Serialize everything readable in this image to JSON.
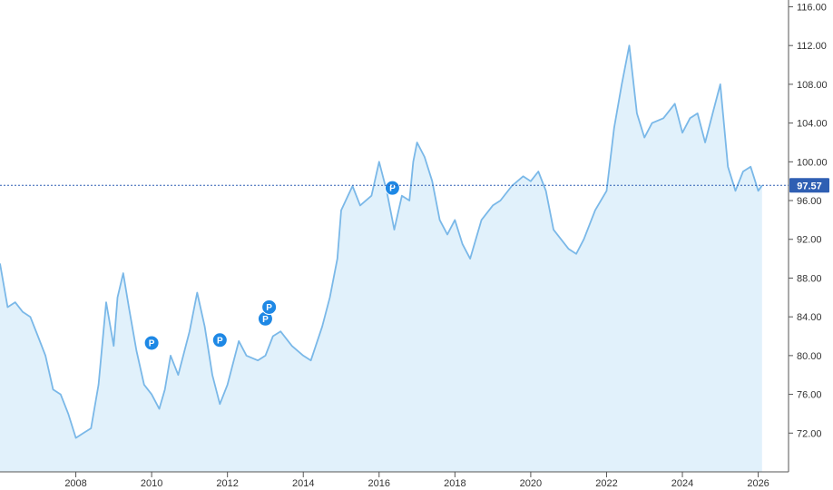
{
  "chart_data": {
    "type": "area",
    "title": "",
    "xlabel": "",
    "ylabel": "",
    "xlim": [
      2006.0,
      2026.8
    ],
    "ylim": [
      68.0,
      116.7
    ],
    "x_ticks": [
      "2008",
      "2010",
      "2012",
      "2014",
      "2016",
      "2018",
      "2020",
      "2022",
      "2024",
      "2026"
    ],
    "y_ticks": [
      "72.00",
      "76.00",
      "80.00",
      "84.00",
      "88.00",
      "92.00",
      "96.00",
      "100.00",
      "104.00",
      "108.00",
      "112.00",
      "116.00"
    ],
    "grid": false,
    "current_value": "97.57",
    "colors": {
      "line": "#7ab8e8",
      "fill": "#e1f1fb",
      "marker": "#1e88e5",
      "current_line": "#2f5fb3",
      "current_tag": "#2f5fb3",
      "axis": "#555555"
    },
    "series": [
      {
        "x": [
          2006.0,
          2006.2,
          2006.4,
          2006.6,
          2006.8,
          2007.0,
          2007.2,
          2007.4,
          2007.6,
          2007.8,
          2008.0,
          2008.2,
          2008.4,
          2008.6,
          2008.8,
          2009.0,
          2009.1,
          2009.25,
          2009.4,
          2009.6,
          2009.8,
          2010.0,
          2010.2,
          2010.35,
          2010.5,
          2010.7,
          2011.0,
          2011.2,
          2011.4,
          2011.6,
          2011.8,
          2012.0,
          2012.3,
          2012.5,
          2012.8,
          2013.0,
          2013.2,
          2013.4,
          2013.7,
          2014.0,
          2014.2,
          2014.5,
          2014.7,
          2014.9,
          2015.0,
          2015.3,
          2015.5,
          2015.8,
          2016.0,
          2016.2,
          2016.4,
          2016.6,
          2016.8,
          2016.9,
          2017.0,
          2017.2,
          2017.4,
          2017.6,
          2017.8,
          2018.0,
          2018.2,
          2018.4,
          2018.7,
          2019.0,
          2019.2,
          2019.5,
          2019.8,
          2020.0,
          2020.2,
          2020.4,
          2020.6,
          2020.8,
          2021.0,
          2021.2,
          2021.4,
          2021.7,
          2022.0,
          2022.2,
          2022.4,
          2022.6,
          2022.8,
          2023.0,
          2023.2,
          2023.5,
          2023.8,
          2024.0,
          2024.2,
          2024.4,
          2024.6,
          2024.8,
          2025.0,
          2025.2,
          2025.4,
          2025.6,
          2025.8,
          2026.0,
          2026.1
        ],
        "y": [
          89.5,
          85.0,
          85.5,
          84.5,
          84.0,
          82.0,
          80.0,
          76.5,
          76.0,
          74.0,
          71.5,
          72.0,
          72.5,
          77.0,
          85.5,
          81.0,
          86.0,
          88.5,
          85.0,
          80.5,
          77.0,
          76.0,
          74.5,
          76.5,
          80.0,
          78.0,
          82.5,
          86.5,
          83.0,
          78.0,
          75.0,
          77.0,
          81.5,
          80.0,
          79.5,
          80.0,
          82.0,
          82.5,
          81.0,
          80.0,
          79.5,
          83.0,
          86.0,
          90.0,
          95.0,
          97.5,
          95.5,
          96.5,
          100.0,
          97.0,
          93.0,
          96.5,
          96.0,
          100.0,
          102.0,
          100.5,
          98.0,
          94.0,
          92.5,
          94.0,
          91.5,
          90.0,
          94.0,
          95.5,
          96.0,
          97.5,
          98.5,
          98.0,
          99.0,
          97.0,
          93.0,
          92.0,
          91.0,
          90.5,
          92.0,
          95.0,
          97.0,
          103.5,
          108.0,
          112.0,
          105.0,
          102.5,
          104.0,
          104.5,
          106.0,
          103.0,
          104.5,
          105.0,
          102.0,
          105.0,
          108.0,
          99.5,
          97.0,
          99.0,
          99.5,
          97.0,
          97.57
        ]
      }
    ],
    "markers": [
      {
        "label": "P",
        "x": 2010.0,
        "y": 81.3
      },
      {
        "label": "P",
        "x": 2011.8,
        "y": 81.6
      },
      {
        "label": "P",
        "x": 2013.0,
        "y": 83.8
      },
      {
        "label": "P",
        "x": 2013.1,
        "y": 85.0
      },
      {
        "label": "P",
        "x": 2016.35,
        "y": 97.3
      }
    ]
  }
}
